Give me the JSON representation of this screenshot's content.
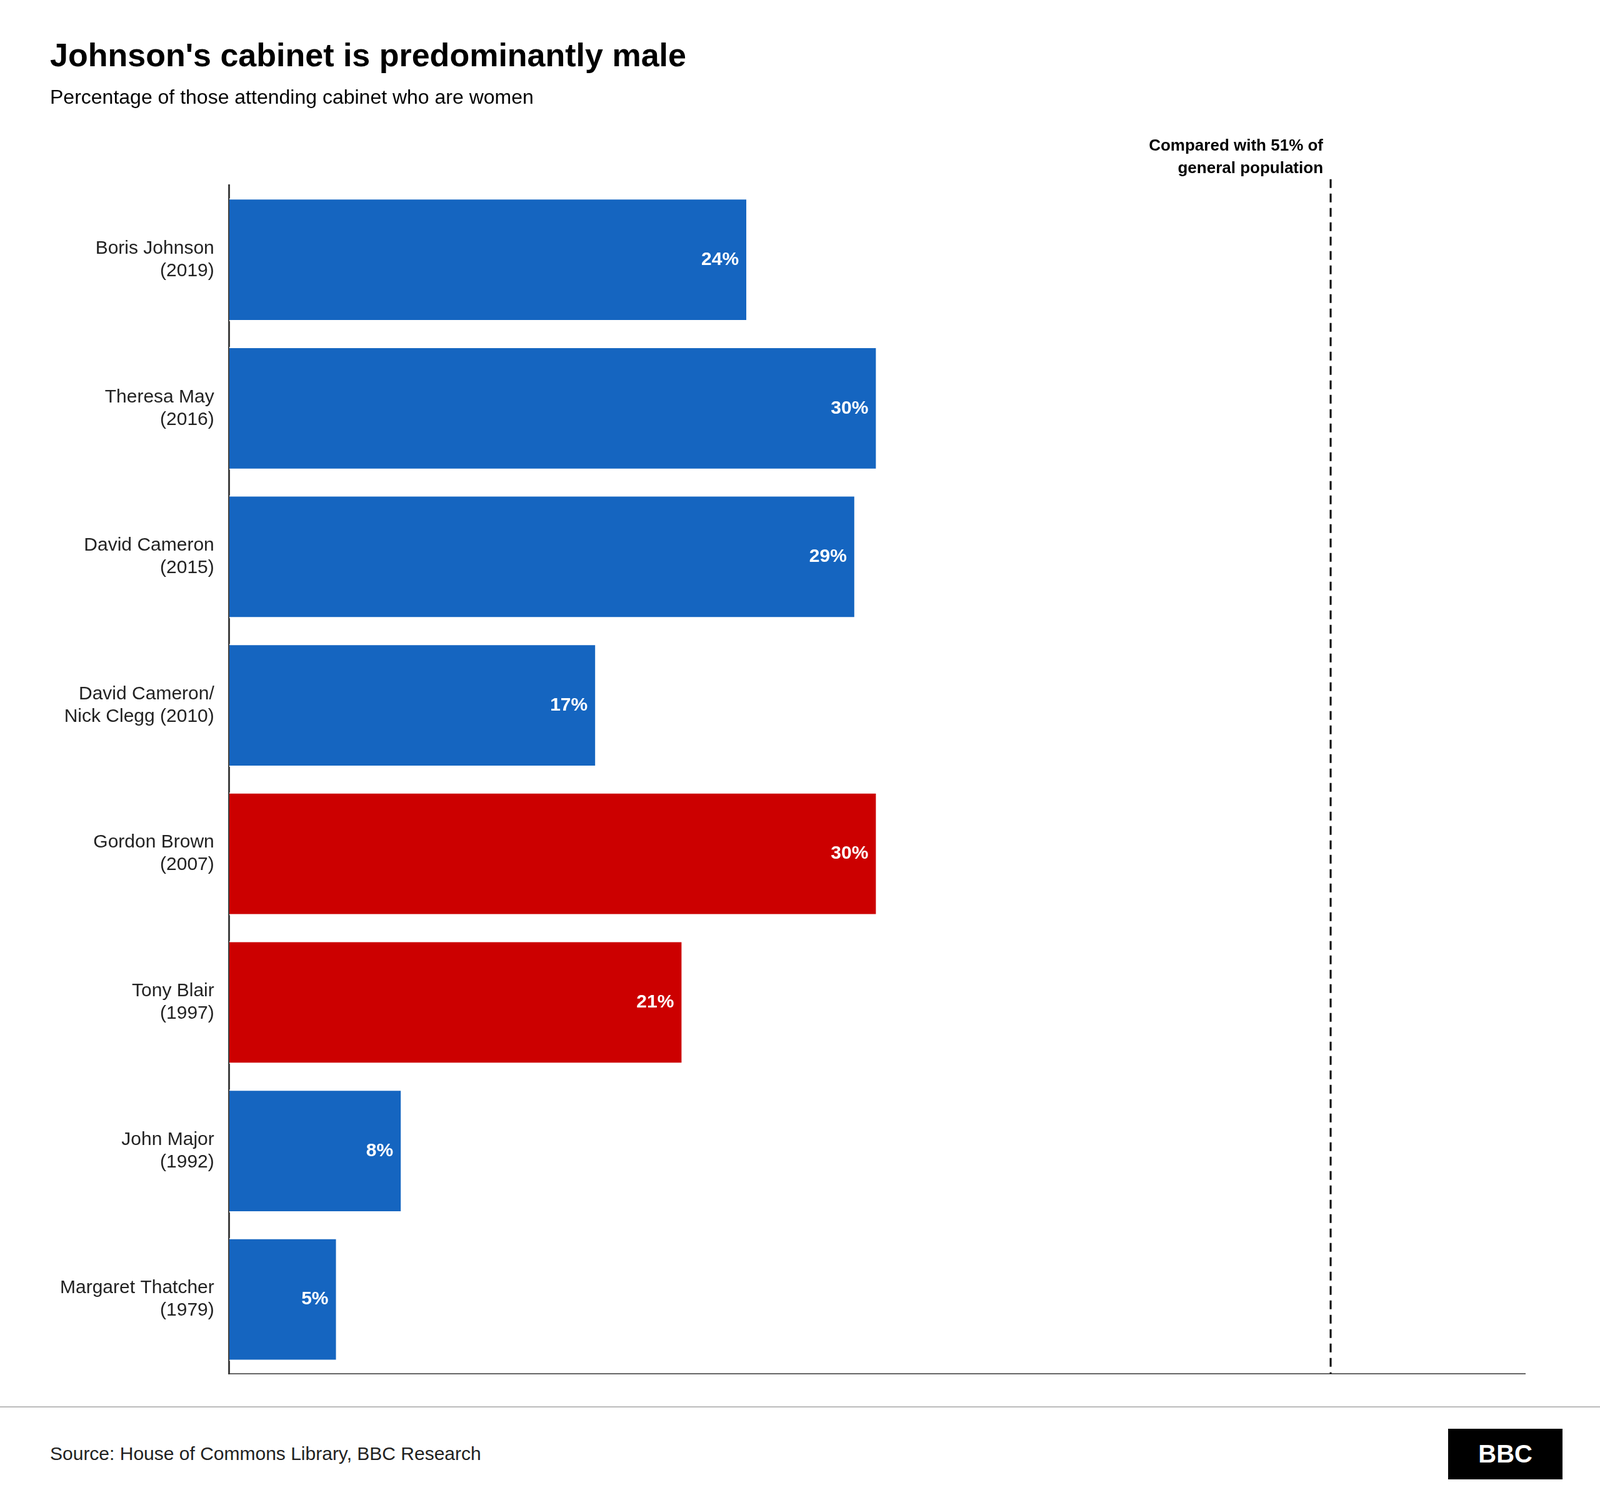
{
  "chart_data": {
    "type": "bar",
    "orientation": "horizontal",
    "title": "Johnson's cabinet is predominantly male",
    "subtitle": "Percentage of those attending cabinet who are women",
    "categories": [
      "Boris Johnson\n(2019)",
      "Theresa May\n(2016)",
      "David Cameron\n(2015)",
      "David Cameron/\nNick Clegg (2010)",
      "Gordon Brown\n(2007)",
      "Tony Blair\n(1997)",
      "John Major\n(1992)",
      "Margaret Thatcher\n(1979)"
    ],
    "values": [
      24,
      30,
      29,
      17,
      30,
      21,
      8,
      5
    ],
    "colors": [
      "#1565c0",
      "#1565c0",
      "#1565c0",
      "#1565c0",
      "#cc0000",
      "#cc0000",
      "#1565c0",
      "#1565c0"
    ],
    "data_labels": true,
    "value_labels": [
      "24%",
      "30%",
      "29%",
      "17%",
      "30%",
      "21%",
      "8%",
      "5%"
    ],
    "xlim": [
      0,
      60
    ],
    "tick_labels": "y",
    "grid": false,
    "annotations": [
      {
        "x": 51,
        "text": "Compared with 51% of\ngeneral population",
        "line_style": "dashed"
      }
    ],
    "source": "Source: House of Commons Library, BBC Research",
    "logo": "BBC"
  }
}
